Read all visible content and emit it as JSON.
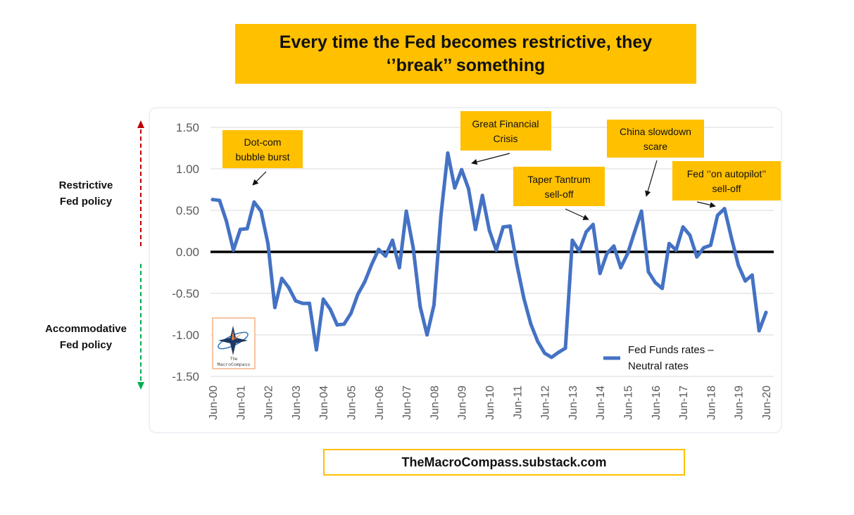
{
  "title": {
    "line1": "Every time the Fed becomes restrictive, they",
    "line2": "‘’break’’ something"
  },
  "side_labels": {
    "restrictive_1": "Restrictive",
    "restrictive_2": "Fed policy",
    "accommodative_1": "Accommodative",
    "accommodative_2": "Fed policy"
  },
  "footer": "TheMacroCompass.substack.com",
  "logo": {
    "line1": "The",
    "line2": "MacroCompass",
    "icon": "compass-star-icon"
  },
  "colors": {
    "accent": "#ffc000",
    "series": "#4472c4",
    "restrictive_arrow": "#c00000",
    "accommodative_arrow": "#00b050"
  },
  "chart_data": {
    "type": "line",
    "title": "Every time the Fed becomes restrictive, they ‘’break’’ something",
    "xlabel": "",
    "ylabel": "",
    "ylim": [
      -1.5,
      1.5
    ],
    "yticks": [
      "1.50",
      "1.00",
      "0.50",
      "0.00",
      "-0.50",
      "-1.00",
      "-1.50"
    ],
    "ytick_values": [
      1.5,
      1.0,
      0.5,
      0.0,
      -0.5,
      -1.0,
      -1.5
    ],
    "xlim": [
      0,
      20
    ],
    "xticks": [
      "Jun-00",
      "Jun-01",
      "Jun-02",
      "Jun-03",
      "Jun-04",
      "Jun-05",
      "Jun-06",
      "Jun-07",
      "Jun-08",
      "Jun-09",
      "Jun-10",
      "Jun-11",
      "Jun-12",
      "Jun-13",
      "Jun-14",
      "Jun-15",
      "Jun-16",
      "Jun-17",
      "Jun-18",
      "Jun-19",
      "Jun-20"
    ],
    "grid": true,
    "legend": {
      "position": "bottom-right",
      "line1": "Fed Funds rates –",
      "line2": "Neutral rates"
    },
    "series": [
      {
        "name": "Fed Funds rates – Neutral rates",
        "x": [
          0,
          0.25,
          0.5,
          0.75,
          1,
          1.25,
          1.5,
          1.75,
          2,
          2.25,
          2.5,
          2.75,
          3,
          3.25,
          3.5,
          3.75,
          4,
          4.25,
          4.5,
          4.75,
          5,
          5.25,
          5.5,
          5.75,
          6,
          6.25,
          6.5,
          6.75,
          7,
          7.25,
          7.5,
          7.75,
          8,
          8.25,
          8.5,
          8.75,
          9,
          9.25,
          9.5,
          9.75,
          10,
          10.25,
          10.5,
          10.75,
          11,
          11.25,
          11.5,
          11.75,
          12,
          12.25,
          12.5,
          12.75,
          13,
          13.25,
          13.5,
          13.75,
          14,
          14.25,
          14.5,
          14.75,
          15,
          15.25,
          15.5,
          15.75,
          16,
          16.25,
          16.5,
          16.75,
          17,
          17.25,
          17.5,
          17.75,
          18,
          18.25,
          18.5,
          18.75,
          19,
          19.25,
          19.5,
          19.75,
          20
        ],
        "values": [
          0.63,
          0.62,
          0.37,
          0.02,
          0.27,
          0.28,
          0.6,
          0.49,
          0.1,
          -0.67,
          -0.32,
          -0.43,
          -0.59,
          -0.62,
          -0.62,
          -1.18,
          -0.57,
          -0.69,
          -0.88,
          -0.87,
          -0.74,
          -0.51,
          -0.36,
          -0.15,
          0.03,
          -0.05,
          0.14,
          -0.19,
          0.49,
          0.05,
          -0.66,
          -1.0,
          -0.64,
          0.43,
          1.19,
          0.77,
          0.99,
          0.76,
          0.27,
          0.68,
          0.26,
          0.02,
          0.3,
          0.31,
          -0.16,
          -0.56,
          -0.87,
          -1.08,
          -1.22,
          -1.27,
          -1.21,
          -1.16,
          0.14,
          0.01,
          0.24,
          0.33,
          -0.26,
          -0.02,
          0.07,
          -0.19,
          -0.02,
          0.24,
          0.49,
          -0.24,
          -0.37,
          -0.44,
          0.1,
          0.02,
          0.3,
          0.2,
          -0.06,
          0.05,
          0.08,
          0.44,
          0.52,
          0.17,
          -0.16,
          -0.35,
          -0.28,
          -0.95,
          -0.73
        ]
      }
    ],
    "annotations": [
      {
        "id": "dotcom",
        "line1": "Dot-com",
        "line2": "bubble burst",
        "x": 1.5,
        "y": 0.6
      },
      {
        "id": "gfc",
        "line1": "Great Financial",
        "line2": "Crisis",
        "x": 9.25,
        "y": 1.08
      },
      {
        "id": "taper",
        "line1": "Taper Tantrum",
        "line2": "sell-off",
        "x": 13.75,
        "y": 0.39
      },
      {
        "id": "china",
        "line1": "China slowdown",
        "line2": "scare",
        "x": 15.5,
        "y": 0.63
      },
      {
        "id": "autopilot",
        "line1": "Fed ‘’on autopilot’’",
        "line2": "sell-off",
        "x": 18.25,
        "y": 0.55
      }
    ]
  }
}
